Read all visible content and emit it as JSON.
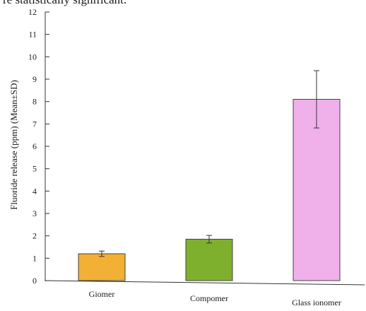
{
  "caption_fragment": "re statistically significant.",
  "chart_data": {
    "type": "bar",
    "title": "",
    "xlabel": "",
    "ylabel": "Fluoride release (ppm) (Mean±SD)",
    "ylim": [
      0,
      12
    ],
    "yticks": [
      0,
      1,
      2,
      3,
      4,
      5,
      6,
      7,
      8,
      9,
      10,
      11,
      12
    ],
    "grid": false,
    "categories": [
      "Giomer",
      "Compomer",
      "Glass ionomer"
    ],
    "values": [
      1.2,
      1.85,
      8.1
    ],
    "error": [
      0.12,
      0.17,
      1.28
    ],
    "colors": [
      "#f2b035",
      "#7eb02e",
      "#f0b0ea"
    ]
  }
}
